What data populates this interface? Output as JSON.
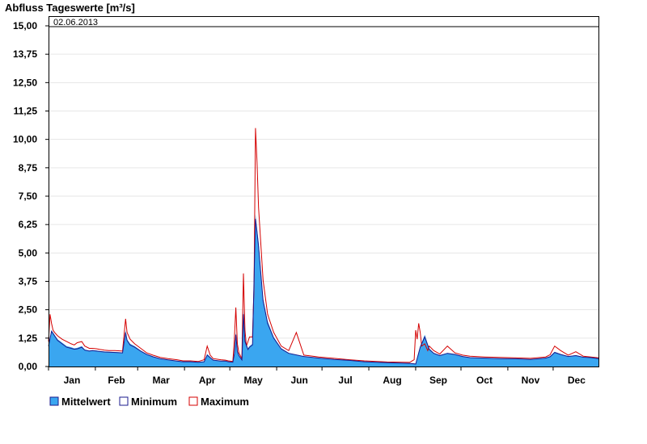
{
  "chart_data": {
    "type": "area",
    "title": "Abfluss Tageswerte [m³/s]",
    "annotation": "02.06.2013",
    "ylim": [
      0,
      15
    ],
    "yticks": [
      "15,00",
      "13,75",
      "12,50",
      "11,25",
      "10,00",
      "8,75",
      "7,50",
      "6,25",
      "5,00",
      "3,75",
      "2,50",
      "1,25",
      "0,00"
    ],
    "ytick_values": [
      15,
      13.75,
      12.5,
      11.25,
      10,
      8.75,
      7.5,
      6.25,
      5,
      3.75,
      2.5,
      1.25,
      0
    ],
    "months": [
      "Jan",
      "Feb",
      "Mar",
      "Apr",
      "May",
      "Jun",
      "Jul",
      "Aug",
      "Sep",
      "Oct",
      "Nov",
      "Dec"
    ],
    "month_start_days": [
      1,
      32,
      60,
      91,
      121,
      152,
      182,
      213,
      244,
      274,
      305,
      335
    ],
    "xlim_days": [
      1,
      365
    ],
    "grid": true,
    "legend_position": "bottom-left",
    "colors": {
      "mittelwert": "#3aa6f0",
      "minimum": "#1a1a8c",
      "maximum": "#d40000"
    },
    "series": [
      {
        "name": "Mittelwert",
        "x": [
          1,
          3,
          5,
          7,
          10,
          13,
          16,
          18,
          20,
          23,
          25,
          28,
          30,
          33,
          35,
          38,
          41,
          45,
          50,
          52,
          53,
          55,
          58,
          62,
          66,
          70,
          75,
          80,
          86,
          90,
          95,
          100,
          104,
          106,
          110,
          115,
          118,
          120,
          123,
          124,
          125,
          126,
          127,
          129,
          130,
          131,
          133,
          134,
          136,
          138,
          140,
          143,
          146,
          150,
          155,
          160,
          170,
          180,
          190,
          200,
          210,
          225,
          240,
          244,
          247,
          250,
          253,
          256,
          260,
          265,
          270,
          275,
          280,
          290,
          300,
          310,
          320,
          330,
          333,
          336,
          340,
          345,
          350,
          355,
          360,
          365
        ],
        "y": [
          0.95,
          1.6,
          1.4,
          1.2,
          1.05,
          0.9,
          0.85,
          0.8,
          0.82,
          0.9,
          0.75,
          0.7,
          0.72,
          0.7,
          0.68,
          0.66,
          0.65,
          0.64,
          0.62,
          1.6,
          1.2,
          1.0,
          0.9,
          0.7,
          0.55,
          0.45,
          0.35,
          0.3,
          0.25,
          0.22,
          0.22,
          0.2,
          0.22,
          0.55,
          0.3,
          0.25,
          0.25,
          0.22,
          0.2,
          0.6,
          1.5,
          0.7,
          0.5,
          0.3,
          2.5,
          1.2,
          0.8,
          0.9,
          1.0,
          6.7,
          5.5,
          3.0,
          2.0,
          1.3,
          0.8,
          0.6,
          0.45,
          0.38,
          0.32,
          0.28,
          0.22,
          0.18,
          0.15,
          0.12,
          0.9,
          1.4,
          0.8,
          0.6,
          0.5,
          0.6,
          0.55,
          0.45,
          0.4,
          0.38,
          0.36,
          0.35,
          0.32,
          0.38,
          0.45,
          0.65,
          0.55,
          0.45,
          0.5,
          0.42,
          0.4,
          0.36
        ]
      },
      {
        "name": "Minimum",
        "x": [
          1,
          3,
          5,
          7,
          10,
          13,
          16,
          18,
          20,
          23,
          25,
          28,
          30,
          33,
          35,
          38,
          41,
          45,
          50,
          52,
          53,
          55,
          58,
          62,
          66,
          70,
          75,
          80,
          86,
          90,
          95,
          100,
          104,
          106,
          110,
          115,
          118,
          120,
          123,
          124,
          125,
          126,
          127,
          129,
          130,
          131,
          133,
          134,
          136,
          138,
          140,
          143,
          146,
          150,
          155,
          160,
          170,
          180,
          190,
          200,
          210,
          225,
          240,
          244,
          247,
          250,
          253,
          256,
          260,
          265,
          270,
          275,
          280,
          290,
          300,
          310,
          320,
          330,
          333,
          336,
          340,
          345,
          350,
          355,
          360,
          365
        ],
        "y": [
          0.9,
          1.55,
          1.35,
          1.15,
          1.0,
          0.85,
          0.8,
          0.76,
          0.78,
          0.85,
          0.72,
          0.68,
          0.7,
          0.68,
          0.66,
          0.64,
          0.63,
          0.62,
          0.6,
          1.5,
          1.15,
          0.95,
          0.85,
          0.68,
          0.53,
          0.43,
          0.34,
          0.29,
          0.24,
          0.21,
          0.21,
          0.19,
          0.21,
          0.5,
          0.28,
          0.24,
          0.24,
          0.21,
          0.19,
          0.55,
          1.4,
          0.65,
          0.48,
          0.29,
          2.3,
          1.1,
          0.75,
          0.85,
          0.95,
          6.5,
          5.3,
          2.9,
          1.9,
          1.25,
          0.78,
          0.58,
          0.44,
          0.37,
          0.31,
          0.27,
          0.21,
          0.17,
          0.14,
          0.11,
          0.85,
          1.3,
          0.75,
          0.58,
          0.48,
          0.58,
          0.53,
          0.44,
          0.39,
          0.37,
          0.35,
          0.34,
          0.31,
          0.37,
          0.43,
          0.62,
          0.53,
          0.44,
          0.48,
          0.41,
          0.39,
          0.35
        ]
      },
      {
        "name": "Maximum",
        "x": [
          1,
          2,
          3,
          4,
          5,
          7,
          10,
          13,
          16,
          18,
          20,
          23,
          25,
          28,
          30,
          33,
          35,
          38,
          41,
          45,
          50,
          52,
          53,
          55,
          58,
          62,
          66,
          70,
          75,
          80,
          86,
          90,
          95,
          100,
          104,
          106,
          108,
          110,
          115,
          118,
          120,
          123,
          124,
          125,
          126,
          127,
          129,
          130,
          131,
          132,
          133,
          134,
          136,
          137,
          138,
          139,
          140,
          143,
          146,
          150,
          155,
          160,
          165,
          170,
          180,
          190,
          200,
          210,
          225,
          240,
          243,
          244,
          245,
          246,
          247,
          248,
          250,
          252,
          253,
          256,
          260,
          265,
          270,
          275,
          280,
          290,
          300,
          310,
          320,
          330,
          333,
          336,
          340,
          345,
          350,
          355,
          360,
          365
        ],
        "y": [
          1.1,
          2.3,
          1.9,
          1.6,
          1.5,
          1.35,
          1.2,
          1.1,
          1.0,
          0.95,
          1.05,
          1.1,
          0.9,
          0.8,
          0.8,
          0.78,
          0.75,
          0.72,
          0.7,
          0.7,
          0.68,
          2.1,
          1.5,
          1.2,
          1.0,
          0.8,
          0.6,
          0.5,
          0.4,
          0.35,
          0.3,
          0.25,
          0.25,
          0.22,
          0.3,
          0.9,
          0.5,
          0.35,
          0.3,
          0.28,
          0.25,
          0.22,
          1.2,
          2.6,
          1.0,
          0.6,
          0.35,
          4.1,
          1.6,
          0.9,
          1.1,
          1.3,
          1.3,
          3.5,
          10.5,
          9.0,
          7.0,
          3.8,
          2.3,
          1.5,
          0.9,
          0.7,
          1.5,
          0.5,
          0.42,
          0.36,
          0.3,
          0.25,
          0.2,
          0.18,
          0.3,
          1.6,
          1.2,
          1.9,
          1.5,
          0.9,
          1.0,
          0.7,
          0.9,
          0.7,
          0.55,
          0.9,
          0.6,
          0.5,
          0.45,
          0.42,
          0.4,
          0.38,
          0.36,
          0.42,
          0.52,
          0.9,
          0.7,
          0.5,
          0.65,
          0.45,
          0.42,
          0.38
        ]
      }
    ]
  }
}
